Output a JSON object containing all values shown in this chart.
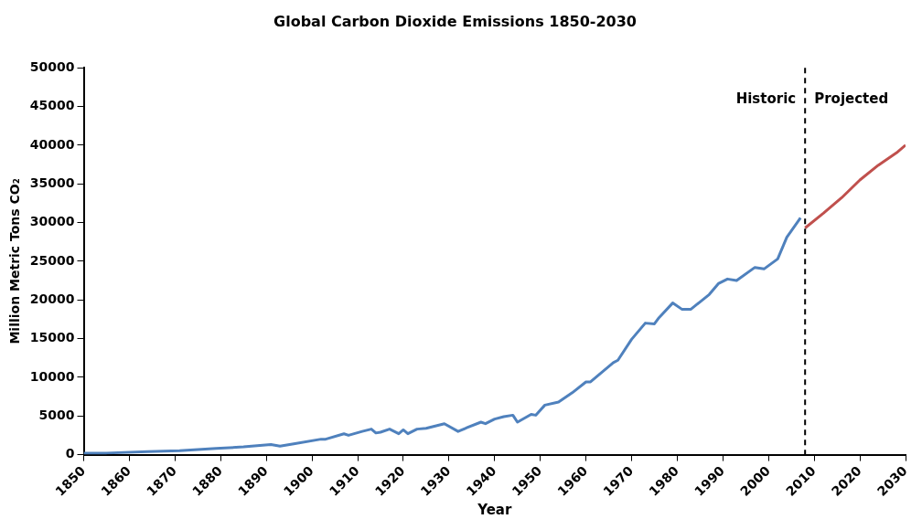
{
  "chart_data": {
    "type": "line",
    "title": "Global Carbon Dioxide Emissions 1850-2030",
    "xlabel": "Year",
    "ylabel": "Million Metric Tons CO₂",
    "xlim": [
      1850,
      2030
    ],
    "xticks": [
      1850,
      1860,
      1870,
      1880,
      1890,
      1900,
      1910,
      1920,
      1930,
      1940,
      1950,
      1960,
      1970,
      1980,
      1990,
      2000,
      2010,
      2020,
      2030
    ],
    "ylim": [
      0,
      50000
    ],
    "yticks": [
      0,
      5000,
      10000,
      15000,
      20000,
      25000,
      30000,
      35000,
      40000,
      45000,
      50000
    ],
    "grid": false,
    "legend": false,
    "marker": "none",
    "line_style": "solid",
    "series": [
      {
        "color": "#4f81bd",
        "x": [
          1850,
          1855,
          1864,
          1871,
          1879,
          1885,
          1891,
          1893,
          1896,
          1902,
          1903,
          1907,
          1908,
          1911,
          1913,
          1914,
          1915,
          1917,
          1919,
          1920,
          1921,
          1923,
          1925,
          1929,
          1932,
          1934,
          1937,
          1938,
          1940,
          1942,
          1944,
          1945,
          1948,
          1949,
          1951,
          1954,
          1957,
          1960,
          1961,
          1966,
          1967,
          1970,
          1973,
          1975,
          1976,
          1979,
          1981,
          1983,
          1987,
          1989,
          1991,
          1993,
          1997,
          1999,
          2002,
          2004,
          2007
        ],
        "values": [
          200,
          200,
          400,
          500,
          800,
          1000,
          1300,
          1100,
          1400,
          2000,
          2000,
          2700,
          2500,
          3000,
          3300,
          2800,
          2900,
          3300,
          2700,
          3200,
          2700,
          3300,
          3400,
          4000,
          3000,
          3500,
          4200,
          4000,
          4600,
          4900,
          5100,
          4200,
          5200,
          5100,
          6400,
          6800,
          8000,
          9400,
          9400,
          11900,
          12200,
          14900,
          17000,
          16900,
          17700,
          19600,
          18800,
          18800,
          20700,
          22100,
          22700,
          22500,
          24200,
          24000,
          25300,
          28100,
          30600
        ]
      },
      {
        "color": "#c0504d",
        "x": [
          2008,
          2012,
          2016,
          2020,
          2024,
          2028,
          2030
        ],
        "values": [
          29300,
          31200,
          33200,
          35500,
          37400,
          39000,
          40000
        ]
      }
    ],
    "ref_lines": [
      {
        "axis": "x",
        "value": 2008,
        "color": "#000000",
        "line_style": "dashed"
      }
    ],
    "annotations": [
      "Historic",
      "Projected"
    ]
  }
}
